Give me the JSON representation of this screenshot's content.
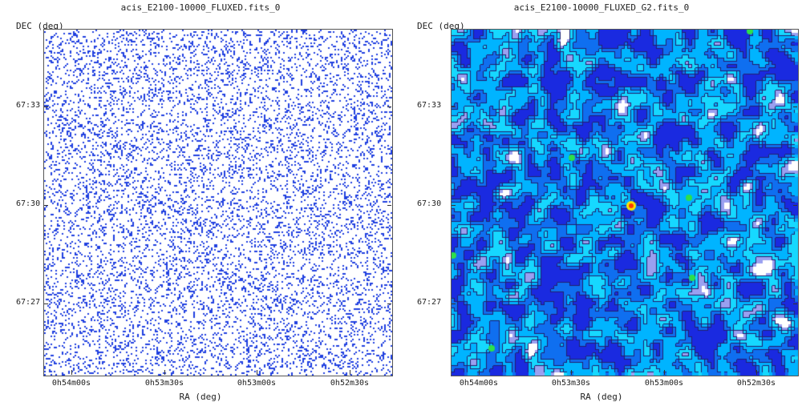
{
  "chart_data": [
    {
      "type": "heatmap",
      "title": "acis_E2100-10000_FLUXED.fits_0",
      "xlabel": "RA (deg)",
      "ylabel": "DEC (deg)",
      "x_ticks": [
        "0h54m00s",
        "0h53m30s",
        "0h53m00s",
        "0h52m30s"
      ],
      "y_ticks": [
        "67:33",
        "67:30",
        "67:27"
      ],
      "style": "sparse binned counts on white background",
      "colors": {
        "background": "#ffffff",
        "pixels": "#1f3fe0"
      }
    },
    {
      "type": "heatmap",
      "title": "acis_E2100-10000_FLUXED_G2.fits_0",
      "xlabel": "RA (deg)",
      "ylabel": "DEC (deg)",
      "x_ticks": [
        "0h54m00s",
        "0h53m30s",
        "0h53m00s",
        "0h52m30s"
      ],
      "y_ticks": [
        "67:33",
        "67:30",
        "67:27"
      ],
      "style": "gaussian-smoothed image with contours",
      "colors": {
        "low": "#1a2ae0",
        "mid": "#00c8ff",
        "high": "#ffffff",
        "source": "#ff3b00",
        "contour": "#231e6e"
      },
      "sources": [
        {
          "name": "bright source",
          "ra": "0h53m13s",
          "dec": "67:30:00",
          "color": "#ff3b00"
        }
      ]
    }
  ]
}
